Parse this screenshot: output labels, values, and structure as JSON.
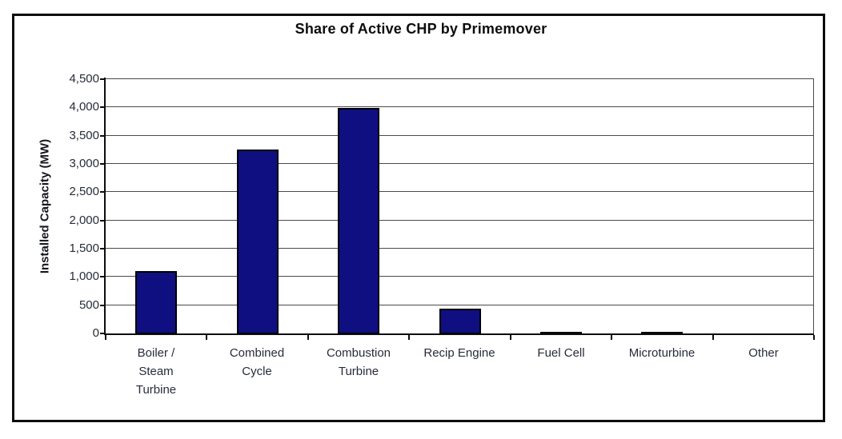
{
  "chart_data": {
    "type": "bar",
    "title": "Share of Active CHP by Primemover",
    "xlabel": "",
    "ylabel": "Installed Capacity (MW)",
    "categories": [
      "Boiler /\nSteam\nTurbine",
      "Combined\nCycle",
      "Combustion\nTurbine",
      "Recip Engine",
      "Fuel Cell",
      "Microturbine",
      "Other"
    ],
    "values": [
      1100,
      3250,
      3990,
      440,
      30,
      35,
      0
    ],
    "ylim": [
      0,
      4500
    ],
    "ytick_step": 500,
    "ytick_labels": [
      "0",
      "500",
      "1,000",
      "1,500",
      "2,000",
      "2,500",
      "3,000",
      "3,500",
      "4,000",
      "4,500"
    ],
    "grid": true,
    "legend_position": "none",
    "bar_color": "#0f0f82",
    "bar_border_color": "#000000",
    "outer_border_color": "#0d0d0d",
    "background_color": "#ffffff"
  }
}
